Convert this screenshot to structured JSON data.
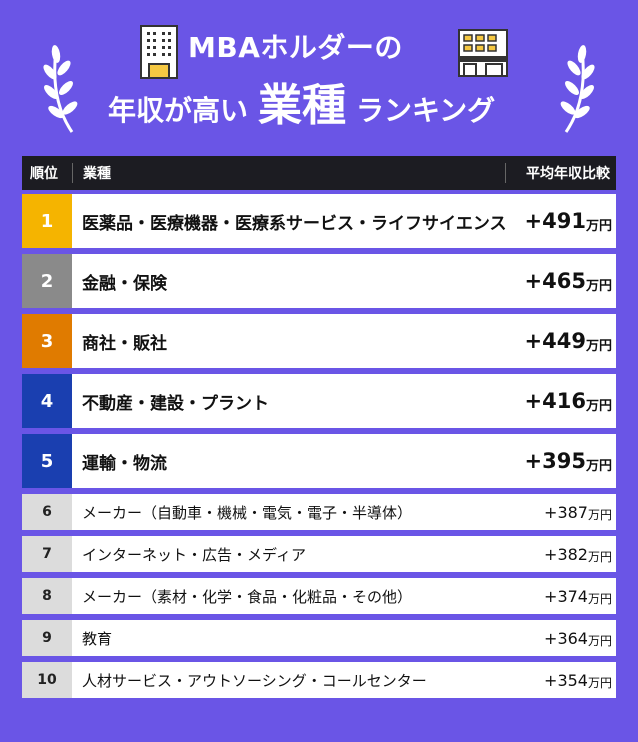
{
  "header": {
    "line1": "MBAホルダーの",
    "line2_pre": "年収が高い",
    "line2_big": "業種",
    "line2_post": "ランキング"
  },
  "table": {
    "col_rank": "順位",
    "col_industry": "業種",
    "col_salary": "平均年収比較",
    "rank_colors": [
      "#f5b400",
      "#8a8a8a",
      "#e07b00",
      "#1a3fb0",
      "#1a3fb0"
    ],
    "rows": [
      {
        "rank": "1",
        "industry": "医薬品・医療機器・医療系サービス・ライフサイエンス",
        "salary": "+491",
        "unit": "万円"
      },
      {
        "rank": "2",
        "industry": "金融・保険",
        "salary": "+465",
        "unit": "万円"
      },
      {
        "rank": "3",
        "industry": "商社・販社",
        "salary": "+449",
        "unit": "万円"
      },
      {
        "rank": "4",
        "industry": "不動産・建設・プラント",
        "salary": "+416",
        "unit": "万円"
      },
      {
        "rank": "5",
        "industry": "運輸・物流",
        "salary": "+395",
        "unit": "万円"
      },
      {
        "rank": "6",
        "industry": "メーカー（自動車・機械・電気・電子・半導体）",
        "salary": "+387",
        "unit": "万円"
      },
      {
        "rank": "7",
        "industry": "インターネット・広告・メディア",
        "salary": "+382",
        "unit": "万円"
      },
      {
        "rank": "8",
        "industry": "メーカー（素材・化学・食品・化粧品・その他）",
        "salary": "+374",
        "unit": "万円"
      },
      {
        "rank": "9",
        "industry": "教育",
        "salary": "+364",
        "unit": "万円"
      },
      {
        "rank": "10",
        "industry": "人材サービス・アウトソーシング・コールセンター",
        "salary": "+354",
        "unit": "万円"
      }
    ]
  },
  "icons": {
    "left_laurel": "laurel-left-icon",
    "right_laurel": "laurel-right-icon",
    "office_building": "office-building-icon",
    "shop_building": "shop-building-icon"
  }
}
